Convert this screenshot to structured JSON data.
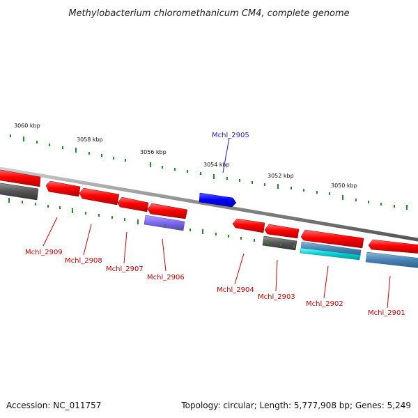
{
  "title": "Methylobacterium chloromethanicum CM4, complete genome",
  "footer": {
    "accession": "Accession: NC_011757",
    "summary": "Topology: circular; Length: 5,777,908 bp; Genes: 5,249"
  },
  "scale_labels": [
    "3060 kbp",
    "3058 kbp",
    "3056 kbp",
    "3054 kbp",
    "3052 kbp",
    "3050 kbp"
  ],
  "genes": [
    {
      "name": "Mchl_2909",
      "color": "#cc0000"
    },
    {
      "name": "Mchl_2908",
      "color": "#cc0000"
    },
    {
      "name": "Mchl_2907",
      "color": "#cc0000"
    },
    {
      "name": "Mchl_2906",
      "color": "#cc0000"
    },
    {
      "name": "Mchl_2905",
      "color": "#1a1acc"
    },
    {
      "name": "Mchl_2904",
      "color": "#cc0000"
    },
    {
      "name": "Mchl_2903",
      "color": "#cc0000"
    },
    {
      "name": "Mchl_2902",
      "color": "#cc0000"
    },
    {
      "name": "Mchl_2901",
      "color": "#cc0000"
    }
  ],
  "colors": {
    "cds_forward": "#ff0000",
    "cds_reverse": "#ff0000",
    "feature_blue": "#0000ff",
    "feature_purple": "#7b68ee",
    "feature_gray": "#555555",
    "feature_steelblue": "#4682b4",
    "feature_cyan": "#00ced1",
    "backbone": "#808080",
    "ticks": "#228b22"
  }
}
